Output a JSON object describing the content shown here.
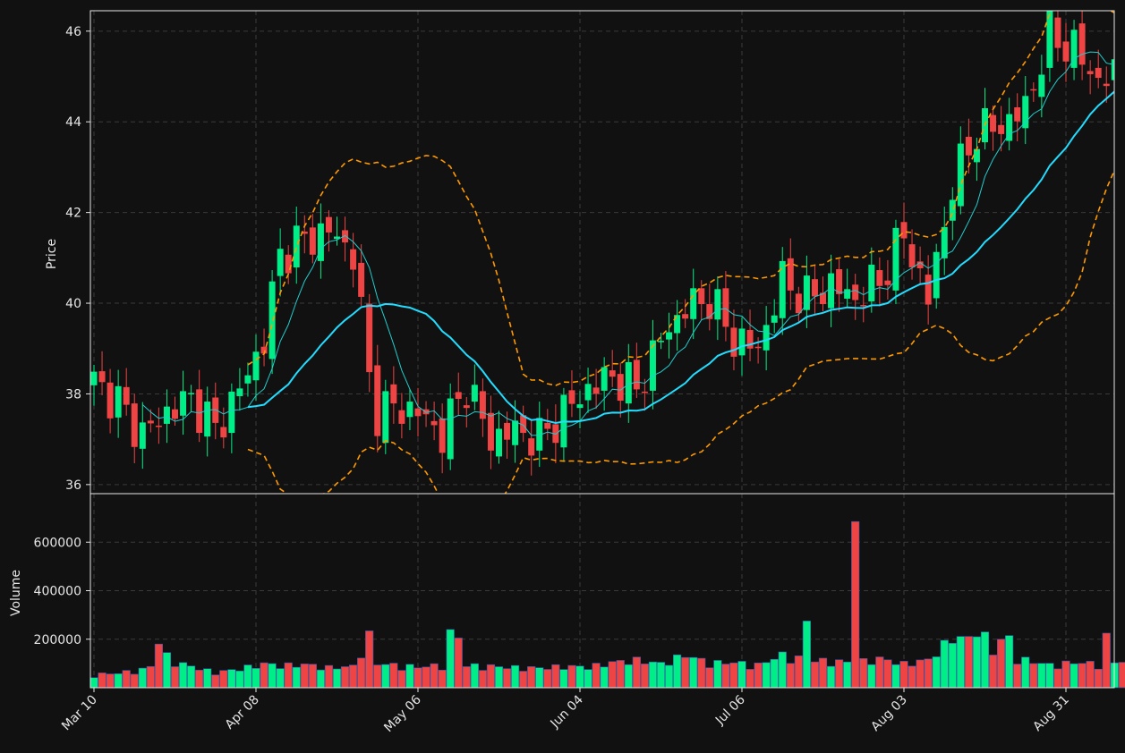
{
  "chart_data": {
    "type": "candlestick",
    "style": "dark",
    "grid": true,
    "colors": {
      "background": "#111111",
      "up": "#00ee88",
      "down": "#ee4444",
      "ma_fast": "#22cccc",
      "ma_slow": "#22ddff",
      "bands": "#ff9900",
      "grid": "#3a3a3a",
      "text": "#e6e6e6"
    },
    "price_panel": {
      "ylabel": "Price",
      "ylim": [
        35.8,
        46.45
      ],
      "yticks": [
        36,
        38,
        40,
        42,
        44,
        46
      ]
    },
    "volume_panel": {
      "ylabel": "Volume",
      "ylim": [
        0,
        800000
      ],
      "yticks": [
        200000,
        400000,
        600000
      ]
    },
    "x_tick_labels": [
      "Mar 10",
      "Apr 08",
      "May 06",
      "Jun 04",
      "Jul 06",
      "Aug 03",
      "Aug 31"
    ],
    "x_tick_index": [
      0,
      20,
      40,
      60,
      80,
      100,
      120
    ],
    "n_bars": 128,
    "anchors": {
      "idx": [
        0,
        3,
        6,
        9,
        12,
        15,
        18,
        21,
        23,
        26,
        29,
        32,
        34,
        35,
        37,
        40,
        43,
        46,
        49,
        52,
        55,
        58,
        61,
        64,
        67,
        70,
        73,
        76,
        79,
        82,
        85,
        88,
        91,
        94,
        97,
        100,
        103,
        106,
        109,
        112,
        115,
        118,
        121,
        124,
        127
      ],
      "close": [
        38.3,
        37.8,
        37.1,
        37.6,
        37.9,
        37.2,
        38.1,
        39.2,
        41.1,
        41.4,
        41.6,
        41.1,
        38.4,
        37.6,
        37.7,
        37.6,
        37.1,
        38.2,
        37.0,
        37.2,
        37.0,
        37.6,
        38.1,
        38.4,
        38.1,
        39.2,
        39.9,
        40.1,
        39.2,
        39.0,
        40.5,
        40.1,
        40.4,
        40.1,
        40.5,
        41.5,
        40.1,
        42.6,
        43.8,
        43.9,
        44.3,
        45.9,
        45.6,
        44.9,
        45.1
      ],
      "volume": [
        52000,
        58000,
        72000,
        110000,
        85000,
        60000,
        75000,
        95000,
        88000,
        92000,
        80000,
        84000,
        205000,
        96000,
        90000,
        82000,
        90000,
        88000,
        85000,
        80000,
        78000,
        85000,
        82000,
        100000,
        110000,
        95000,
        130000,
        98000,
        100000,
        90000,
        130000,
        110000,
        105000,
        100000,
        115000,
        95000,
        110000,
        200000,
        190000,
        120000,
        110000,
        90000,
        100000,
        95000,
        105000
      ]
    },
    "volume_spikes": {
      "8": 180000,
      "9": 145000,
      "44": 240000,
      "45": 205000,
      "88": 275000,
      "94": 685000,
      "109": 210000,
      "110": 230000,
      "112": 200000,
      "113": 215000,
      "125": 225000
    },
    "ma_fast_period": 7,
    "ma_slow_period": 20,
    "band_std": 2
  }
}
